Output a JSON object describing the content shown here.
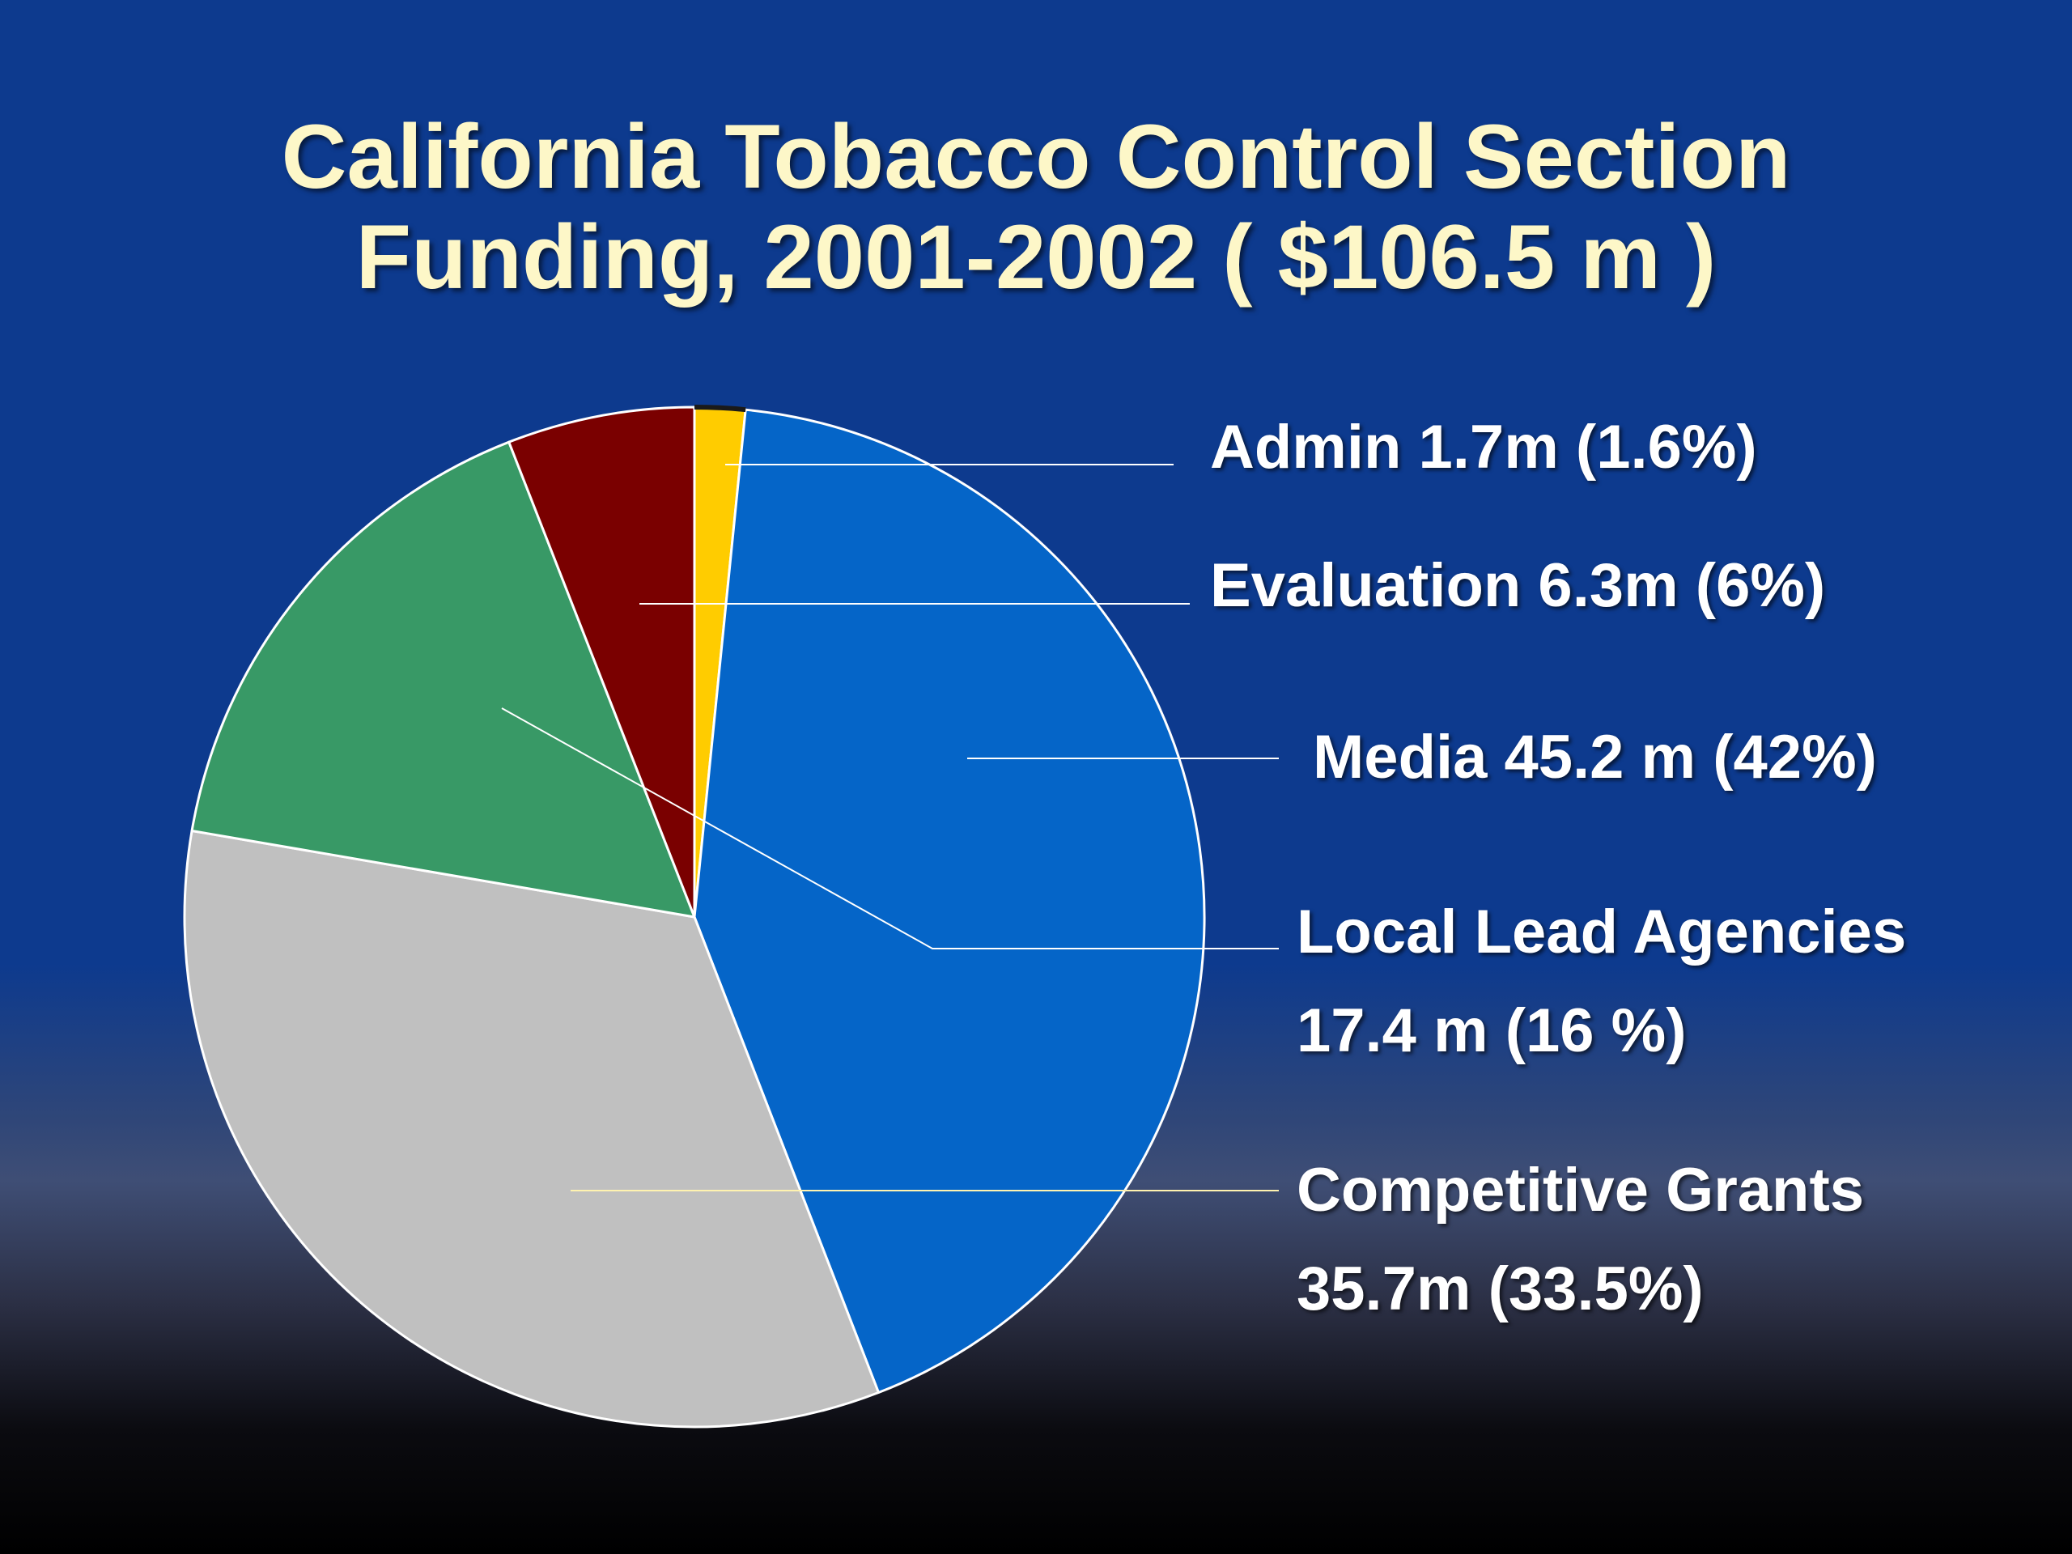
{
  "chart_data": {
    "type": "pie",
    "title": "California Tobacco Control Section",
    "subtitle": "Funding, 2001-2002 ( $106.5 m )",
    "total_million": 106.5,
    "slices": [
      {
        "key": "admin",
        "name": "Admin",
        "value": 1.7,
        "percent": 1.6,
        "color": "#ffcc00",
        "label_lines": [
          "Admin 1.7m (1.6%)"
        ]
      },
      {
        "key": "media",
        "name": "Media",
        "value": 45.2,
        "percent": 42,
        "color": "#0565c8",
        "label_lines": [
          "Media 45.2 m (42%)"
        ]
      },
      {
        "key": "competitive",
        "name": "Competitive Grants",
        "value": 35.7,
        "percent": 33.5,
        "color": "#c0c0c0",
        "label_lines": [
          "Competitive Grants",
          "35.7m (33.5%)"
        ]
      },
      {
        "key": "local",
        "name": "Local Lead Agencies",
        "value": 17.4,
        "percent": 16,
        "color": "#389966",
        "label_lines": [
          "Local Lead Agencies",
          "17.4 m (16 %)"
        ]
      },
      {
        "key": "evaluation",
        "name": "Evaluation",
        "value": 6.3,
        "percent": 6,
        "color": "#7a0000",
        "label_lines": [
          "Evaluation 6.3m (6%)"
        ]
      }
    ],
    "start_angle": "12 o'clock",
    "direction": "clockwise",
    "legend": "none",
    "grid": false
  },
  "colors": {
    "background_top": "#0d3a8e",
    "title_text": "#fdf7c8",
    "label_text": "#ffffff",
    "slice_border": "#ffffff"
  }
}
